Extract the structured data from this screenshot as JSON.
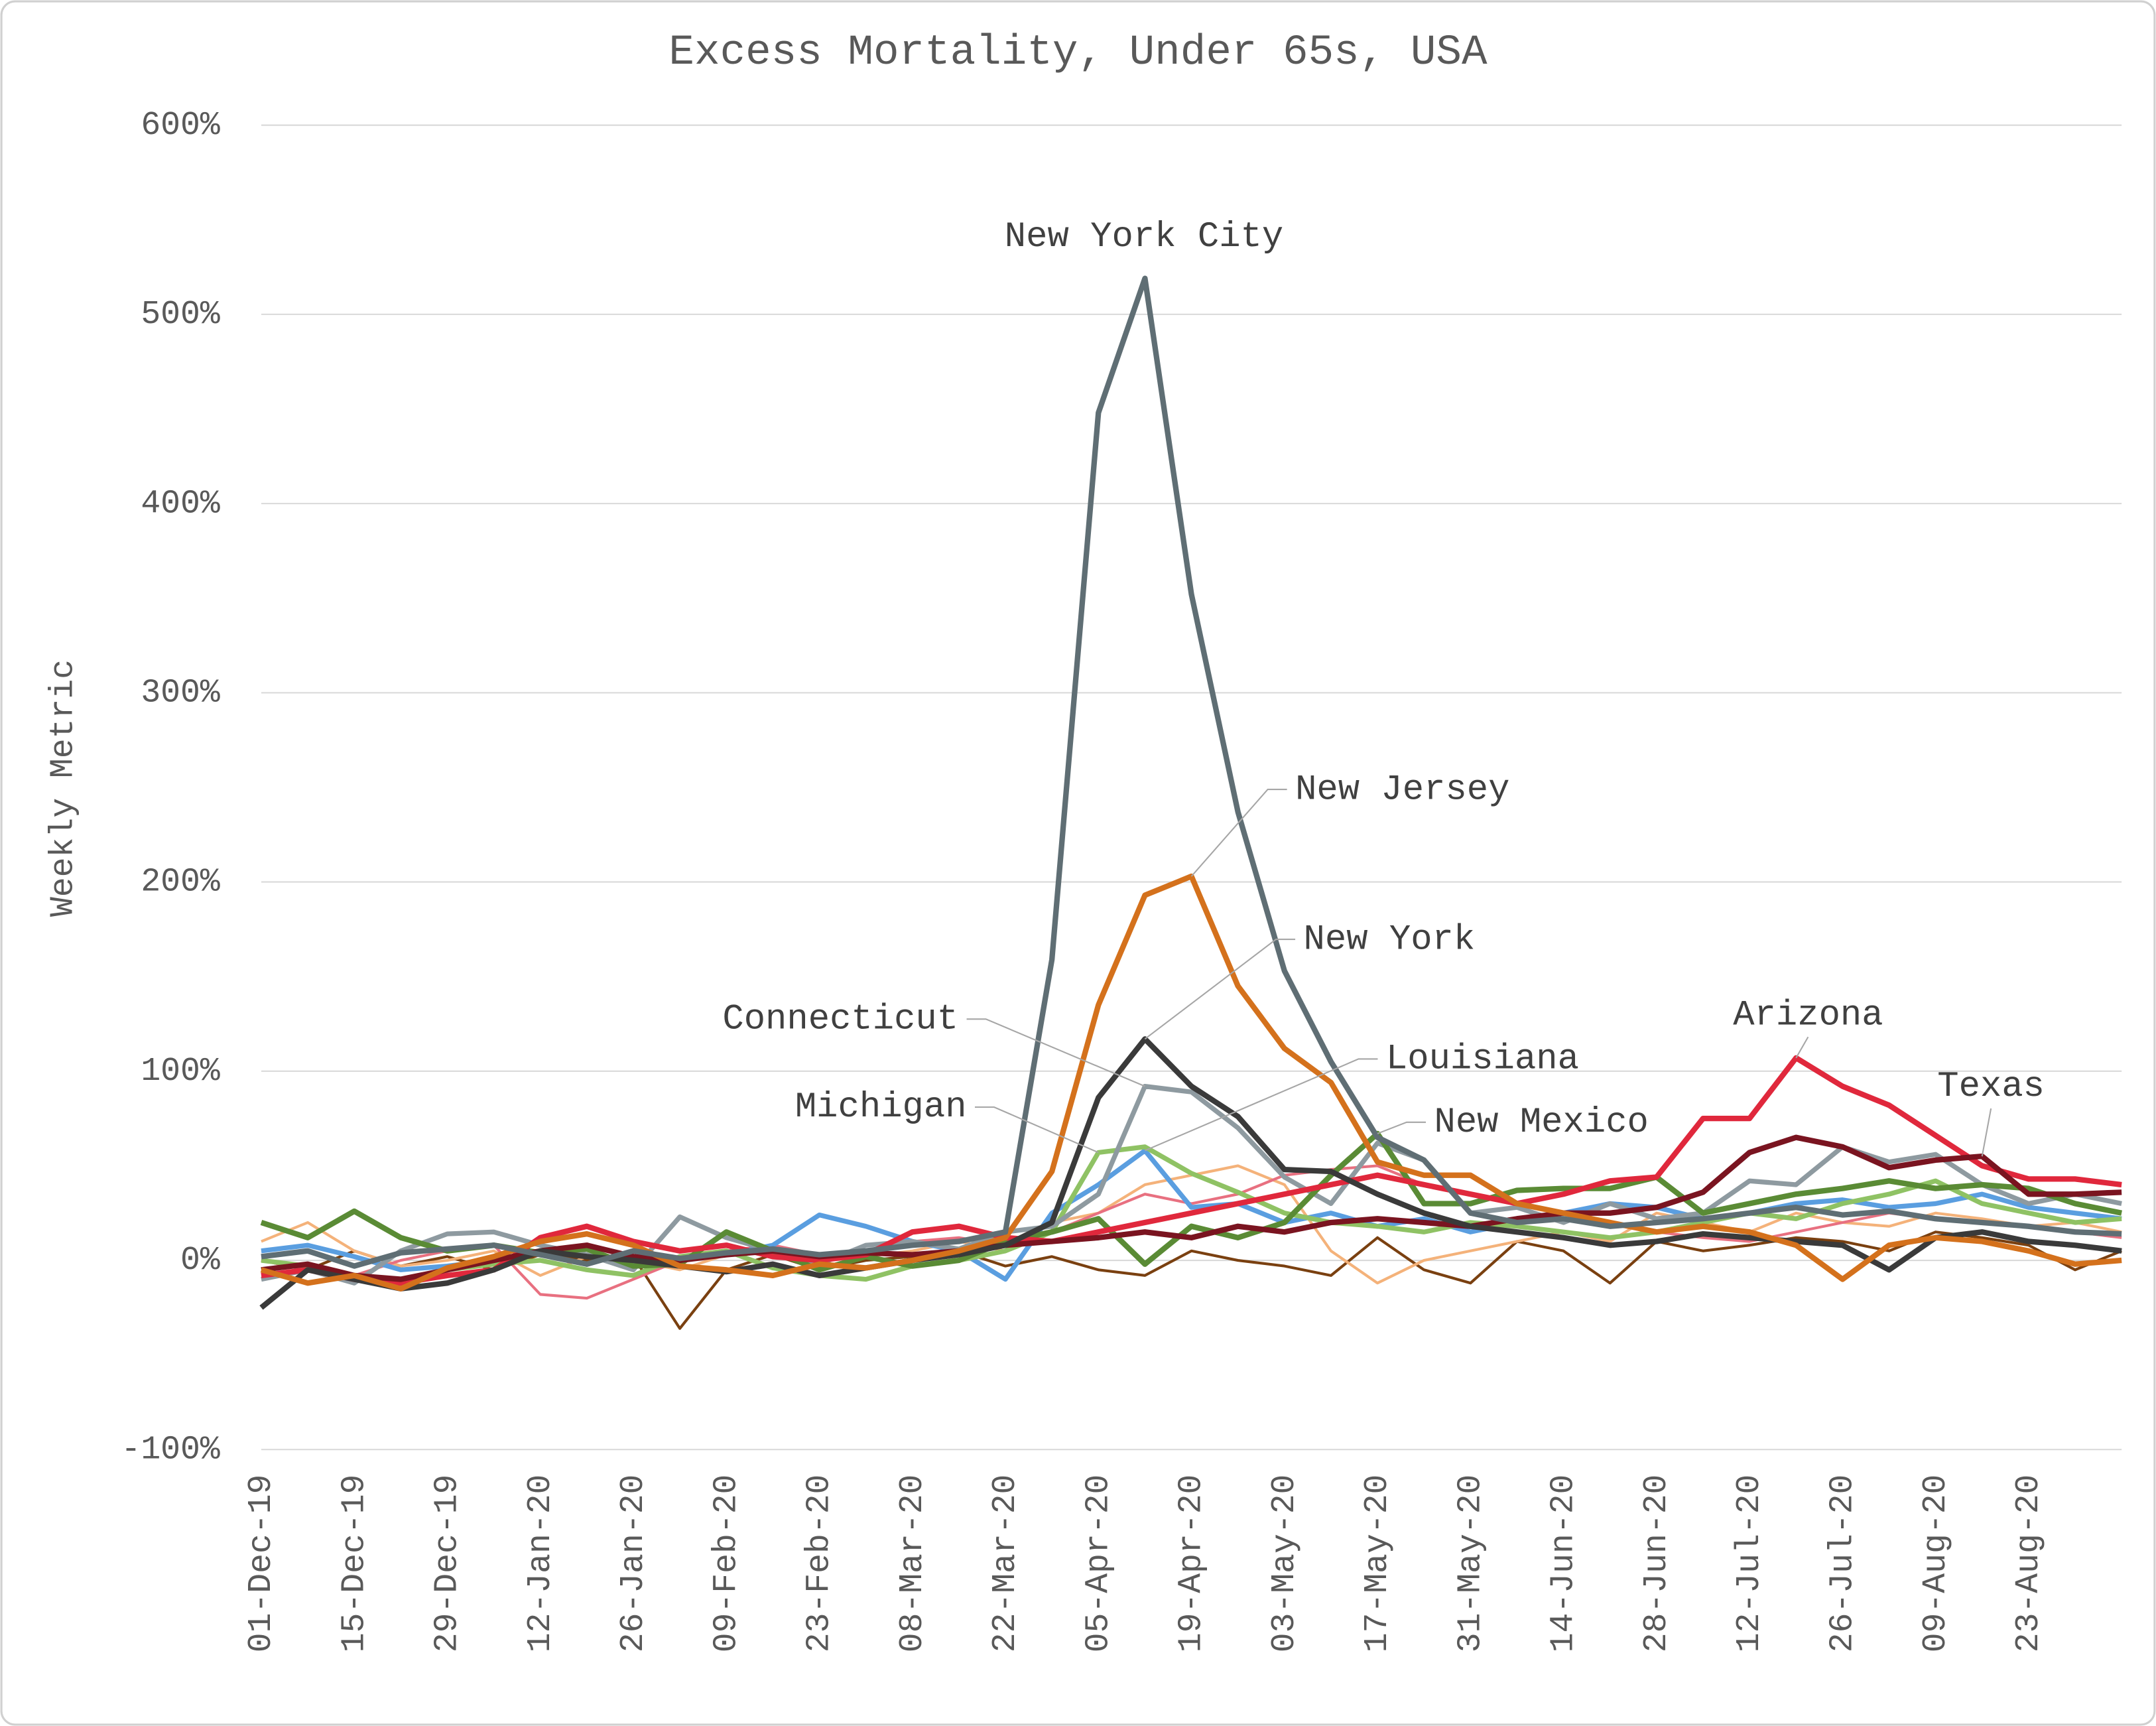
{
  "chart_data": {
    "type": "line",
    "title": "Excess Mortality, Under 65s, USA",
    "y_label": "Weekly Metric",
    "categories": [
      "01-Dec-19",
      null,
      "15-Dec-19",
      null,
      "29-Dec-19",
      null,
      "12-Jan-20",
      null,
      "26-Jan-20",
      null,
      "09-Feb-20",
      null,
      "23-Feb-20",
      null,
      "08-Mar-20",
      null,
      "22-Mar-20",
      null,
      "05-Apr-20",
      null,
      "19-Apr-20",
      null,
      "03-May-20",
      null,
      "17-May-20",
      null,
      "31-May-20",
      null,
      "14-Jun-20",
      null,
      "28-Jun-20",
      null,
      "12-Jul-20",
      null,
      "26-Jul-20",
      null,
      "09-Aug-20",
      null,
      "23-Aug-20",
      null,
      null
    ],
    "ylim": [
      -100,
      600
    ],
    "yticks": [
      {
        "value": -100,
        "label": "-100%"
      },
      {
        "value": 0,
        "label": "0%"
      },
      {
        "value": 100,
        "label": "100%"
      },
      {
        "value": 200,
        "label": "200%"
      },
      {
        "value": 300,
        "label": "300%"
      },
      {
        "value": 400,
        "label": "400%"
      },
      {
        "value": 500,
        "label": "500%"
      },
      {
        "value": 600,
        "label": "600%"
      }
    ],
    "grid": true,
    "series": [
      {
        "color": "#7a4010",
        "values": [
          0,
          -5,
          5,
          -3,
          2,
          -5,
          3,
          0,
          2,
          -36,
          -5,
          3,
          -5,
          0,
          2,
          5,
          -3,
          2,
          -5,
          -8,
          5,
          0,
          -3,
          -8,
          12,
          -5,
          -12,
          10,
          5,
          -12,
          10,
          5,
          8,
          12,
          10,
          5,
          15,
          12,
          8,
          -5,
          5
        ]
      },
      {
        "color": "#f4b27a",
        "values": [
          10,
          20,
          5,
          -3,
          0,
          5,
          -8,
          2,
          0,
          -5,
          3,
          5,
          0,
          2,
          5,
          10,
          5,
          20,
          25,
          40,
          45,
          50,
          40,
          5,
          -12,
          0,
          5,
          10,
          15,
          10,
          25,
          20,
          15,
          25,
          20,
          18,
          25,
          22,
          18,
          20,
          15
        ]
      },
      {
        "color": "#e87080",
        "values": [
          0,
          -5,
          -8,
          0,
          5,
          8,
          -18,
          -20,
          -10,
          0,
          5,
          8,
          3,
          5,
          10,
          12,
          8,
          15,
          25,
          35,
          30,
          35,
          45,
          48,
          50,
          40,
          35,
          30,
          25,
          20,
          15,
          12,
          10,
          15,
          20,
          25,
          22,
          20,
          18,
          15,
          12
        ]
      },
      {
        "name": "Louisiana",
        "color": "#5a9ee0",
        "values": [
          5,
          8,
          2,
          -5,
          -3,
          0,
          5,
          2,
          -2,
          0,
          3,
          8,
          24,
          18,
          10,
          5,
          -10,
          25,
          40,
          58,
          28,
          30,
          20,
          25,
          18,
          22,
          15,
          20,
          25,
          30,
          28,
          22,
          25,
          30,
          32,
          28,
          30,
          35,
          28,
          25,
          22
        ]
      },
      {
        "name": "Michigan",
        "color": "#8fc264",
        "values": [
          0,
          -3,
          -8,
          -10,
          -5,
          -2,
          0,
          -5,
          -8,
          2,
          5,
          -4,
          -8,
          -10,
          -3,
          0,
          5,
          15,
          57,
          60,
          46,
          36,
          25,
          20,
          18,
          15,
          20,
          18,
          15,
          12,
          15,
          20,
          25,
          22,
          30,
          35,
          42,
          30,
          25,
          20,
          22
        ]
      },
      {
        "name": "Connecticut",
        "color": "#8e9aa0",
        "values": [
          -10,
          -5,
          -12,
          5,
          14,
          15,
          8,
          3,
          -5,
          23,
          12,
          5,
          -2,
          8,
          10,
          6,
          15,
          18,
          35,
          92,
          89,
          70,
          44,
          30,
          62,
          53,
          25,
          28,
          20,
          30,
          22,
          25,
          42,
          40,
          60,
          52,
          56,
          40,
          30,
          35,
          30
        ]
      },
      {
        "name": "New Mexico",
        "color": "#5a8b35",
        "values": [
          20,
          12,
          26,
          12,
          5,
          8,
          4,
          6,
          -3,
          -2,
          15,
          5,
          -5,
          2,
          -3,
          0,
          10,
          15,
          22,
          -2,
          18,
          12,
          20,
          45,
          67,
          30,
          30,
          37,
          38,
          38,
          44,
          25,
          30,
          35,
          38,
          42,
          38,
          40,
          38,
          30,
          25
        ]
      },
      {
        "name": "Arizona",
        "color": "#e0283c",
        "values": [
          -8,
          -5,
          -10,
          -12,
          -8,
          -5,
          12,
          18,
          10,
          5,
          8,
          2,
          0,
          3,
          15,
          18,
          12,
          10,
          15,
          20,
          25,
          30,
          35,
          40,
          45,
          40,
          35,
          30,
          35,
          42,
          44,
          75,
          75,
          107,
          92,
          82,
          66,
          50,
          43,
          43,
          40
        ]
      },
      {
        "name": "Texas",
        "color": "#7a1420",
        "values": [
          -5,
          -2,
          -8,
          -10,
          -5,
          0,
          5,
          8,
          2,
          0,
          3,
          5,
          2,
          4,
          3,
          5,
          8,
          10,
          12,
          15,
          12,
          18,
          15,
          20,
          22,
          20,
          18,
          22,
          25,
          25,
          28,
          36,
          57,
          65,
          60,
          49,
          53,
          55,
          35,
          35,
          36
        ]
      },
      {
        "name": "New York",
        "color": "#3a3a3a",
        "values": [
          -25,
          -5,
          -10,
          -15,
          -12,
          -5,
          5,
          2,
          0,
          -3,
          -6,
          -2,
          -8,
          -4,
          0,
          3,
          8,
          20,
          86,
          117,
          92,
          76,
          48,
          47,
          35,
          25,
          18,
          15,
          12,
          8,
          10,
          14,
          12,
          10,
          8,
          -5,
          12,
          15,
          10,
          8,
          5
        ]
      },
      {
        "name": "New Jersey",
        "color": "#d4711c",
        "values": [
          -5,
          -12,
          -8,
          -15,
          -4,
          2,
          10,
          14,
          8,
          -3,
          -5,
          -8,
          -2,
          -4,
          0,
          5,
          12,
          47,
          135,
          193,
          203,
          145,
          112,
          94,
          52,
          45,
          45,
          30,
          25,
          20,
          15,
          18,
          15,
          8,
          -10,
          8,
          12,
          10,
          5,
          -2,
          0
        ]
      },
      {
        "name": "New York City",
        "color": "#5f6e74",
        "values": [
          2,
          5,
          -3,
          4,
          6,
          8,
          3,
          -2,
          5,
          1,
          4,
          6,
          3,
          5,
          8,
          10,
          15,
          159,
          448,
          519,
          352,
          237,
          153,
          105,
          65,
          53,
          25,
          20,
          22,
          18,
          20,
          22,
          25,
          28,
          24,
          26,
          22,
          20,
          18,
          15,
          14
        ]
      }
    ]
  }
}
